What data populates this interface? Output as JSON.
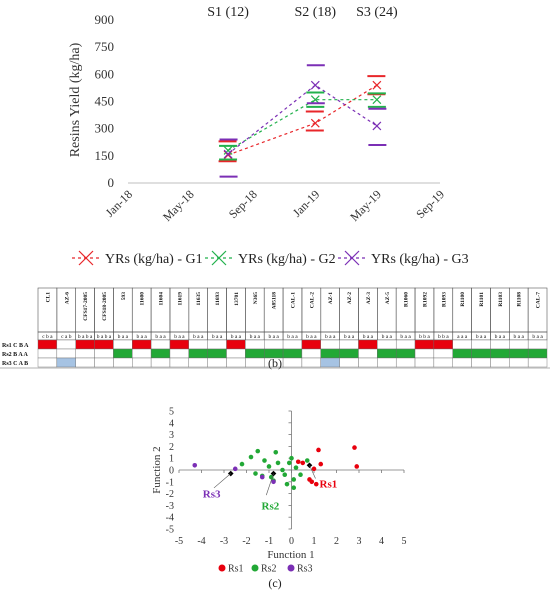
{
  "chart_data": [
    {
      "type": "line",
      "ylabel": "Resins Yield (kg/ha)",
      "x_ticks": [
        "Jan-18",
        "May-18",
        "Sep-18",
        "Jan-19",
        "May-19",
        "Sep-19"
      ],
      "x_tick_dates": [
        "2018-01-01",
        "2018-05-01",
        "2018-09-01",
        "2019-01-01",
        "2019-05-01",
        "2019-09-01"
      ],
      "y_ticks": [
        0,
        150,
        300,
        450,
        600,
        750,
        900
      ],
      "ylim": [
        0,
        900
      ],
      "stages": [
        {
          "label": "S1 (12)",
          "date": "2018-07-15"
        },
        {
          "label": "S2 (18)",
          "date": "2019-01-01"
        },
        {
          "label": "S3 (24)",
          "date": "2019-05-01"
        }
      ],
      "series": [
        {
          "name": "YRs (kg/ha) - G1",
          "color": "#e8262a",
          "points": [
            {
              "x": "2018-07-15",
              "y": 155,
              "upper": 230,
              "lower": 120
            },
            {
              "x": "2019-01-01",
              "y": 330,
              "upper": 395,
              "lower": 290
            },
            {
              "x": "2019-05-01",
              "y": 540,
              "upper": 590,
              "lower": 490
            }
          ]
        },
        {
          "name": "YRs (kg/ha) - G2",
          "color": "#22b14c",
          "points": [
            {
              "x": "2018-07-15",
              "y": 180,
              "upper": 205,
              "lower": 130
            },
            {
              "x": "2019-01-01",
              "y": 460,
              "upper": 500,
              "lower": 420
            },
            {
              "x": "2019-05-01",
              "y": 460,
              "upper": 495,
              "lower": 420
            }
          ]
        },
        {
          "name": "YRs (kg/ha) - G3",
          "color": "#7b2fb5",
          "points": [
            {
              "x": "2018-07-15",
              "y": 160,
              "upper": 240,
              "lower": 35
            },
            {
              "x": "2019-01-01",
              "y": 540,
              "upper": 650,
              "lower": 440
            },
            {
              "x": "2019-05-01",
              "y": 315,
              "upper": 410,
              "lower": 210
            }
          ]
        }
      ]
    },
    {
      "type": "table",
      "label": "(b)",
      "columns": [
        "CL1",
        "AZ-6",
        "CFS17-2005",
        "CFS18-2005",
        "593",
        "11600",
        "11604",
        "11619",
        "11635",
        "11693",
        "13701",
        "N365",
        "A85118",
        "CAL-1",
        "CAL-2",
        "AZ-1",
        "AZ-2",
        "AZ-3",
        "AZ-5",
        "R1060",
        "R1092",
        "R1093",
        "R1100",
        "R1101",
        "R1103",
        "R1108",
        "CAL-7"
      ],
      "letters": [
        "c b a",
        "c a b",
        "b a b a",
        "b a b a",
        "b a a",
        "b a a",
        "b a a",
        "b a a",
        "b a a",
        "b a a",
        "b a a",
        "b a a",
        "b a a",
        "b a a",
        "b a a",
        "b a a",
        "b a a",
        "b a a",
        "b a a",
        "b a a",
        "b b a",
        "b b a",
        "a a a",
        "b a a",
        "b a a",
        "b a a",
        "b a a"
      ],
      "rows": [
        {
          "label": "Rs1 C B A",
          "color": "#e8000d",
          "cells": [
            1,
            0,
            1,
            1,
            0,
            1,
            0,
            1,
            0,
            0,
            1,
            0,
            0,
            0,
            1,
            0,
            0,
            1,
            0,
            0,
            1,
            1,
            0,
            0,
            0,
            0,
            0
          ]
        },
        {
          "label": "Rs2 B A A",
          "color": "#22a836",
          "cells": [
            0,
            0,
            0,
            0,
            1,
            0,
            1,
            0,
            1,
            1,
            0,
            1,
            1,
            1,
            0,
            1,
            1,
            0,
            1,
            1,
            0,
            0,
            1,
            1,
            1,
            1,
            1
          ]
        },
        {
          "label": "Rs3 C A B",
          "color": "#a6c3e3",
          "cells": [
            0,
            1,
            0,
            0,
            0,
            0,
            0,
            0,
            0,
            0,
            0,
            0,
            0,
            0,
            0,
            1,
            0,
            0,
            0,
            0,
            0,
            0,
            0,
            0,
            0,
            0,
            0
          ]
        }
      ]
    },
    {
      "type": "scatter",
      "label": "(c)",
      "xlabel": "Function 1",
      "ylabel": "Function 2",
      "xlim": [
        -5,
        5
      ],
      "ylim": [
        -5,
        5
      ],
      "ticks": [
        -5,
        -4,
        -3,
        -2,
        -1,
        0,
        1,
        2,
        3,
        4,
        5
      ],
      "series": [
        {
          "name": "Rs1",
          "color": "#e8000d",
          "points": [
            [
              0.3,
              0.7
            ],
            [
              0.5,
              0.6
            ],
            [
              0.8,
              -0.8
            ],
            [
              0.9,
              -1.0
            ],
            [
              1.1,
              -1.2
            ],
            [
              1.2,
              1.7
            ],
            [
              1.3,
              0.5
            ],
            [
              2.8,
              1.9
            ],
            [
              2.9,
              0.3
            ],
            [
              1.0,
              0.1
            ]
          ]
        },
        {
          "name": "Rs2",
          "color": "#22a836",
          "points": [
            [
              -2.2,
              0.5
            ],
            [
              -1.8,
              1.1
            ],
            [
              -1.6,
              -0.3
            ],
            [
              -1.5,
              1.6
            ],
            [
              -1.3,
              -0.5
            ],
            [
              -1.2,
              0.8
            ],
            [
              -1.0,
              0.3
            ],
            [
              -0.9,
              -0.6
            ],
            [
              -0.7,
              1.5
            ],
            [
              -0.6,
              0.6
            ],
            [
              -0.4,
              0.0
            ],
            [
              -0.3,
              -0.4
            ],
            [
              -0.2,
              -1.2
            ],
            [
              -0.1,
              0.6
            ],
            [
              0.0,
              1.0
            ],
            [
              0.1,
              -0.8
            ],
            [
              0.2,
              0.2
            ],
            [
              0.4,
              -0.4
            ],
            [
              0.7,
              0.8
            ],
            [
              -0.8,
              -0.9
            ],
            [
              0.1,
              -1.5
            ]
          ]
        },
        {
          "name": "Rs3",
          "color": "#7b2fb5",
          "points": [
            [
              -4.3,
              0.4
            ],
            [
              -2.5,
              0.1
            ],
            [
              -1.3,
              -0.6
            ],
            [
              -0.8,
              -1.0
            ]
          ]
        }
      ],
      "centroids": [
        {
          "name": "Rs1",
          "label": "Rs1",
          "x": 0.8,
          "y": 0.4
        },
        {
          "name": "Rs2",
          "label": "Rs2",
          "x": -0.8,
          "y": -0.3
        },
        {
          "name": "Rs3",
          "label": "Rs3",
          "x": -2.7,
          "y": -0.3
        }
      ]
    }
  ]
}
